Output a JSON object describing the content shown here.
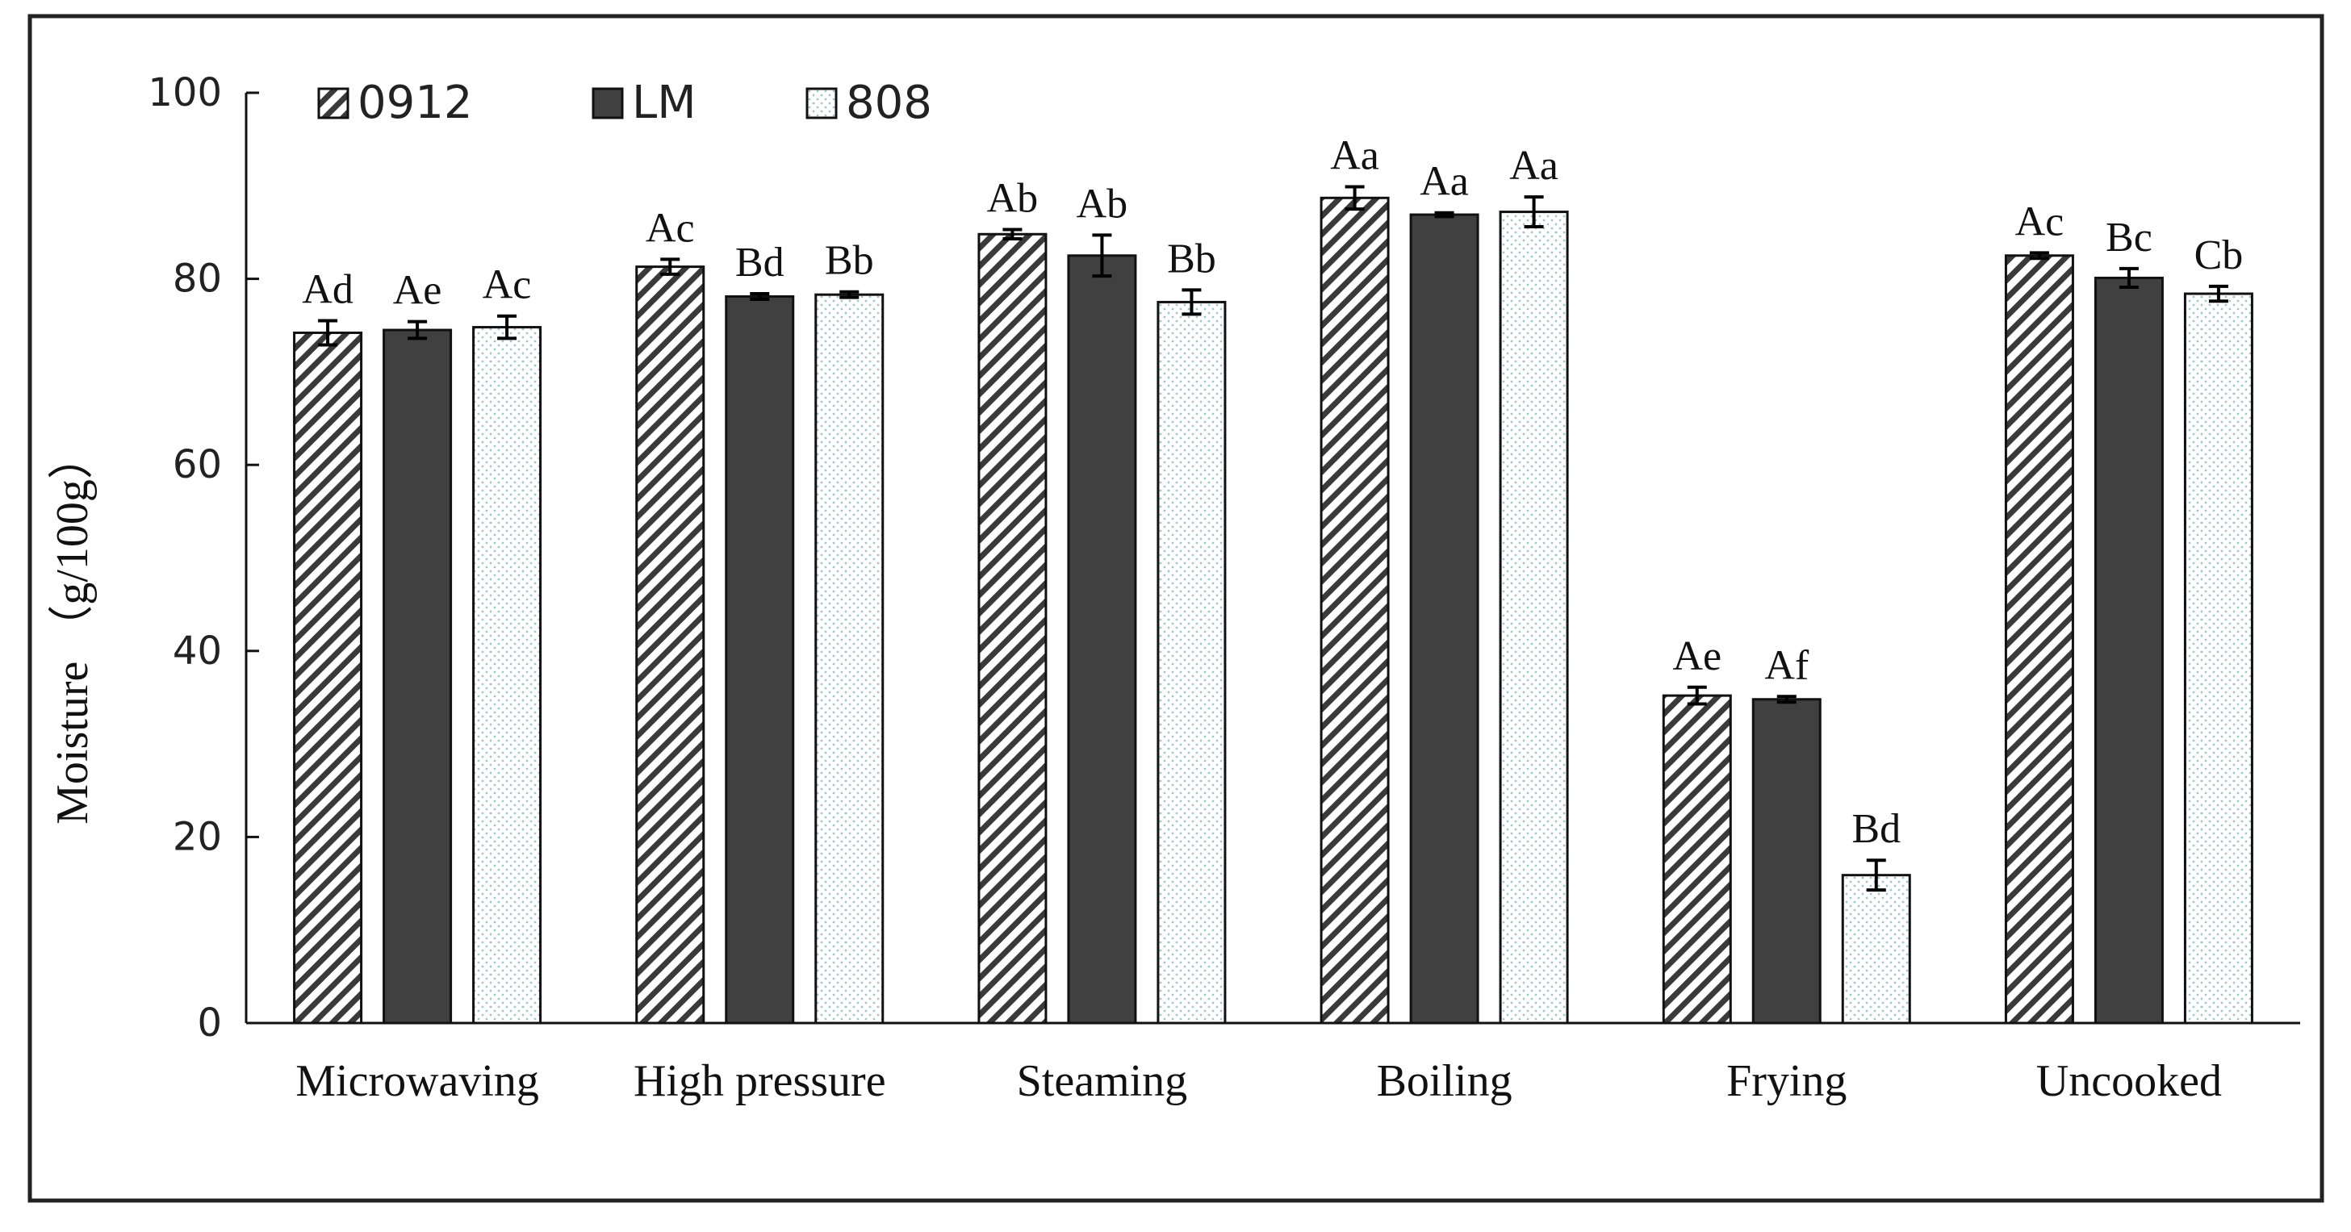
{
  "chart_data": {
    "type": "bar",
    "title": "",
    "xlabel": "",
    "ylabel": "Moisture （g/100g）",
    "ylim": [
      0,
      100
    ],
    "yticks": [
      0,
      20,
      40,
      60,
      80,
      100
    ],
    "grid": false,
    "legend_position": "top-left",
    "categories": [
      "Microwaving",
      "High pressure",
      "Steaming",
      "Boiling",
      "Frying",
      "Uncooked"
    ],
    "series": [
      {
        "name": "0912",
        "pattern": "diagonal-hatch",
        "values": [
          74.2,
          81.3,
          84.8,
          88.7,
          35.2,
          82.5
        ],
        "errors": [
          1.3,
          0.8,
          0.5,
          1.2,
          0.9,
          0.3
        ],
        "labels": [
          "Ad",
          "Ac",
          "Ab",
          "Aa",
          "Ae",
          "Ac"
        ]
      },
      {
        "name": "LM",
        "pattern": "solid",
        "color": "#404040",
        "values": [
          74.5,
          78.1,
          82.5,
          86.9,
          34.8,
          80.1
        ],
        "errors": [
          0.9,
          0.3,
          2.2,
          0.2,
          0.3,
          1.0
        ],
        "labels": [
          "Ae",
          "Bd",
          "Ab",
          "Aa",
          "Af",
          "Bc"
        ]
      },
      {
        "name": "808",
        "pattern": "dotted",
        "color": "#ffffff",
        "values": [
          74.8,
          78.3,
          77.5,
          87.2,
          15.9,
          78.4
        ],
        "errors": [
          1.2,
          0.3,
          1.3,
          1.6,
          1.6,
          0.8
        ],
        "labels": [
          "Ac",
          "Bb",
          "Bb",
          "Aa",
          "Bd",
          "Cb"
        ]
      }
    ]
  }
}
